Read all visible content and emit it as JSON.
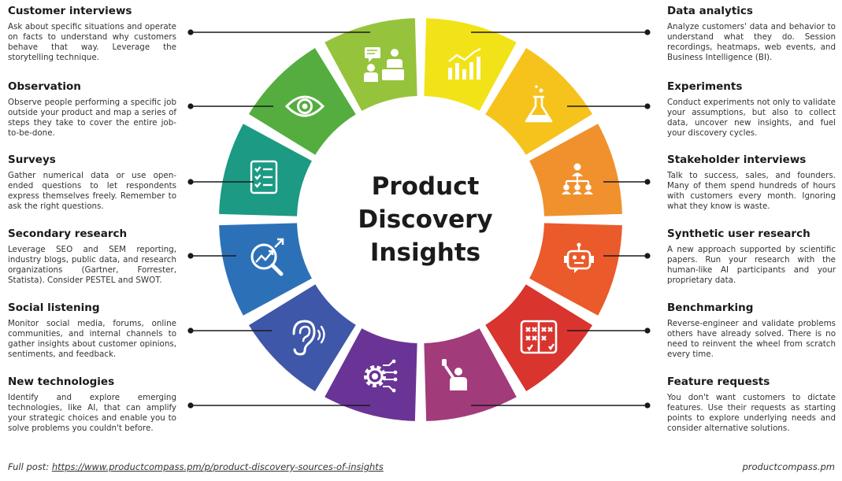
{
  "title": "Product Discovery Insights",
  "segments": [
    {
      "id": "data-analytics",
      "color": "#f2e318",
      "icon": "bar-chart-icon"
    },
    {
      "id": "experiments",
      "color": "#f6c21c",
      "icon": "flask-icon"
    },
    {
      "id": "stakeholder-interviews",
      "color": "#f0912d",
      "icon": "org-chart-icon"
    },
    {
      "id": "synthetic-user-research",
      "color": "#ea5a2a",
      "icon": "robot-icon"
    },
    {
      "id": "benchmarking",
      "color": "#d9342e",
      "icon": "comparison-board-icon"
    },
    {
      "id": "feature-requests",
      "color": "#a23b7a",
      "icon": "raised-hand-icon"
    },
    {
      "id": "new-technologies",
      "color": "#6a3496",
      "icon": "tech-gear-icon"
    },
    {
      "id": "social-listening",
      "color": "#3f57a8",
      "icon": "ear-icon"
    },
    {
      "id": "secondary-research",
      "color": "#2c71b8",
      "icon": "magnifier-trend-icon"
    },
    {
      "id": "surveys",
      "color": "#1c9a83",
      "icon": "checklist-icon"
    },
    {
      "id": "observation",
      "color": "#55ad3f",
      "icon": "eye-icon"
    },
    {
      "id": "customer-interviews",
      "color": "#96c33c",
      "icon": "interview-icon"
    }
  ],
  "left_items": [
    {
      "title": "Customer interviews",
      "text": "Ask about specific situations and operate on facts to understand why customers behave that way. Leverage the storytelling technique."
    },
    {
      "title": "Observation",
      "text": "Observe people performing a specific job outside your product and map a series of steps they take to cover the entire job-to-be-done."
    },
    {
      "title": "Surveys",
      "text": "Gather numerical data or use open-ended questions to let respondents express themselves freely. Remember to ask the right questions."
    },
    {
      "title": "Secondary research",
      "text": "Leverage SEO and SEM reporting, industry blogs, public data, and research organizations (Gartner, Forrester, Statista). Consider PESTEL and SWOT."
    },
    {
      "title": "Social listening",
      "text": "Monitor social media, forums, online communities, and internal channels to gather insights about customer opinions, sentiments, and feedback."
    },
    {
      "title": "New technologies",
      "text": "Identify and explore emerging technologies, like AI, that can amplify your strategic choices and enable you to solve problems you couldn't before."
    }
  ],
  "right_items": [
    {
      "title": "Data analytics",
      "text": "Analyze customers' data and behavior to understand what they do. Session recordings, heatmaps, web events, and Business Intelligence (BI)."
    },
    {
      "title": "Experiments",
      "text": "Conduct experiments not only to validate your assumptions, but also to collect data, uncover new insights, and fuel your discovery cycles."
    },
    {
      "title": "Stakeholder interviews",
      "text": "Talk to success, sales, and founders. Many of them spend hundreds of hours with customers every month. Ignoring what they know is waste."
    },
    {
      "title": "Synthetic user research",
      "text": "A new approach supported by scientific papers. Run your research with the human-like AI participants and your proprietary data."
    },
    {
      "title": "Benchmarking",
      "text": "Reverse-engineer and validate problems others have already solved. There is no need to reinvent the wheel from scratch every time."
    },
    {
      "title": "Feature requests",
      "text": "You don't want customers to dictate features. Use their requests as starting points to explore underlying needs and consider alternative solutions."
    }
  ],
  "footer": {
    "prefix": "Full post: ",
    "link": "https://www.productcompass.pm/p/product-discovery-sources-of-insights",
    "brand": "productcompass.pm"
  }
}
